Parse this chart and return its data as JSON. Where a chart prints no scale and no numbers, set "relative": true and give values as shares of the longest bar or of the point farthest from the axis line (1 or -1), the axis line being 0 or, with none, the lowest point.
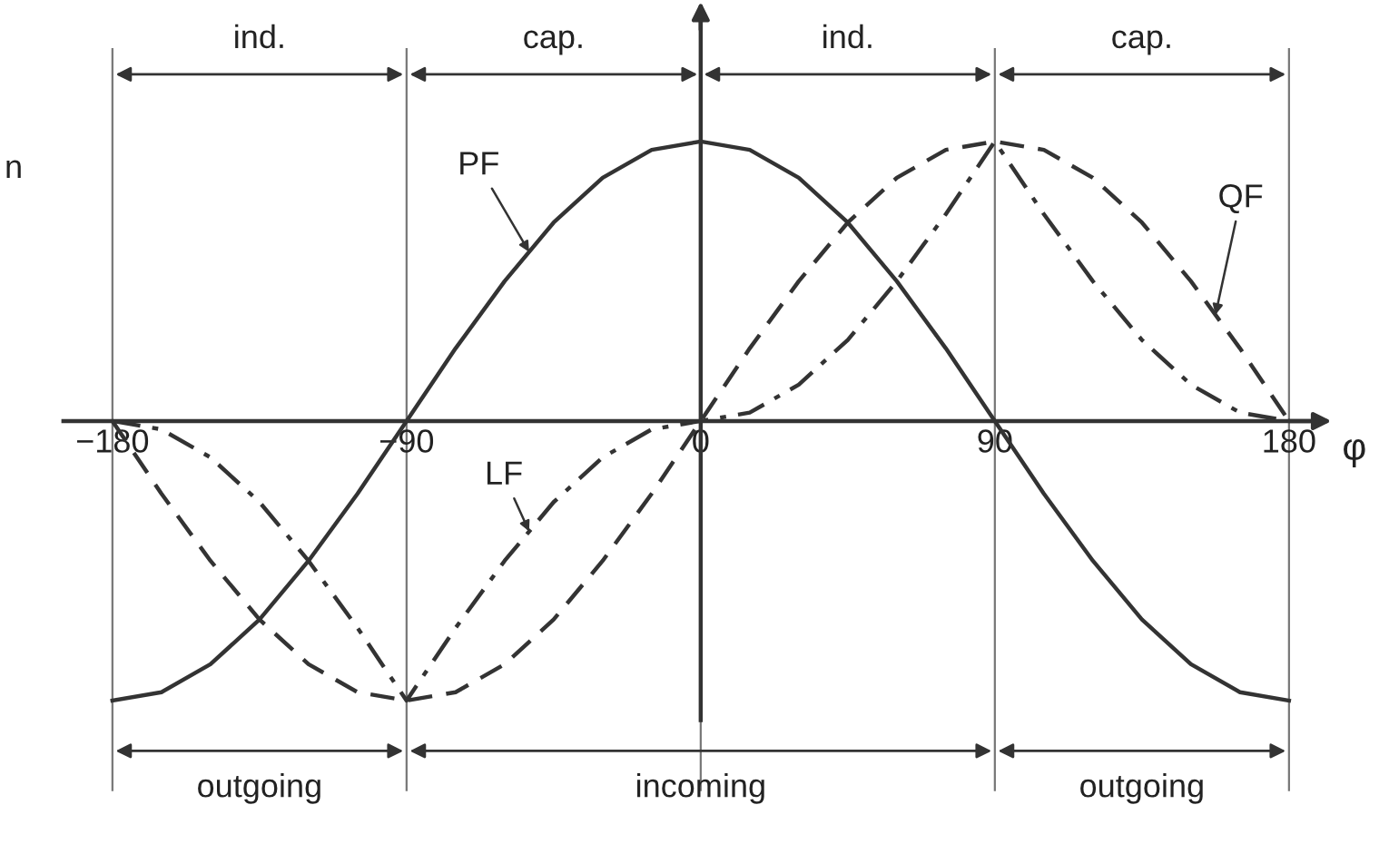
{
  "chart_data": {
    "type": "line",
    "relative": true,
    "xlabel": "φ",
    "x": [
      -180,
      -165,
      -150,
      -135,
      -120,
      -105,
      -90,
      -75,
      -60,
      -45,
      -30,
      -15,
      0,
      15,
      30,
      45,
      60,
      75,
      90,
      105,
      120,
      135,
      150,
      165,
      180
    ],
    "xlim": [
      -214.4,
      210.6
    ],
    "xticks": [
      -180,
      -90,
      0,
      90,
      180
    ],
    "grid": "x",
    "marker": "none",
    "series": [
      {
        "name": "PF",
        "color": "#333333",
        "line_style": "solid",
        "values": [
          -1,
          -0.97,
          -0.87,
          -0.71,
          -0.5,
          -0.26,
          0,
          0.26,
          0.5,
          0.71,
          0.87,
          0.97,
          1,
          0.97,
          0.87,
          0.71,
          0.5,
          0.26,
          0,
          -0.26,
          -0.5,
          -0.71,
          -0.87,
          -0.97,
          -1
        ]
      },
      {
        "name": "QF",
        "color": "#333333",
        "line_style": "dashed",
        "values": [
          0,
          -0.26,
          -0.5,
          -0.71,
          -0.87,
          -0.97,
          -1,
          -0.97,
          -0.87,
          -0.71,
          -0.5,
          -0.26,
          0,
          0.26,
          0.5,
          0.71,
          0.87,
          0.97,
          1,
          0.97,
          0.87,
          0.71,
          0.5,
          0.26,
          0
        ]
      },
      {
        "name": "LF",
        "color": "#333333",
        "line_style": "dashdot",
        "values": [
          0,
          -0.03,
          -0.13,
          -0.29,
          -0.5,
          -0.74,
          -1,
          -0.74,
          -0.5,
          -0.29,
          -0.13,
          -0.03,
          0,
          0.03,
          0.13,
          0.29,
          0.5,
          0.74,
          1,
          0.74,
          0.5,
          0.29,
          0.13,
          0.03,
          0
        ]
      }
    ],
    "annotations": [
      "ind.",
      "cap.",
      "ind.",
      "cap.",
      "outgoing",
      "incoming",
      "outgoing",
      "n"
    ]
  }
}
